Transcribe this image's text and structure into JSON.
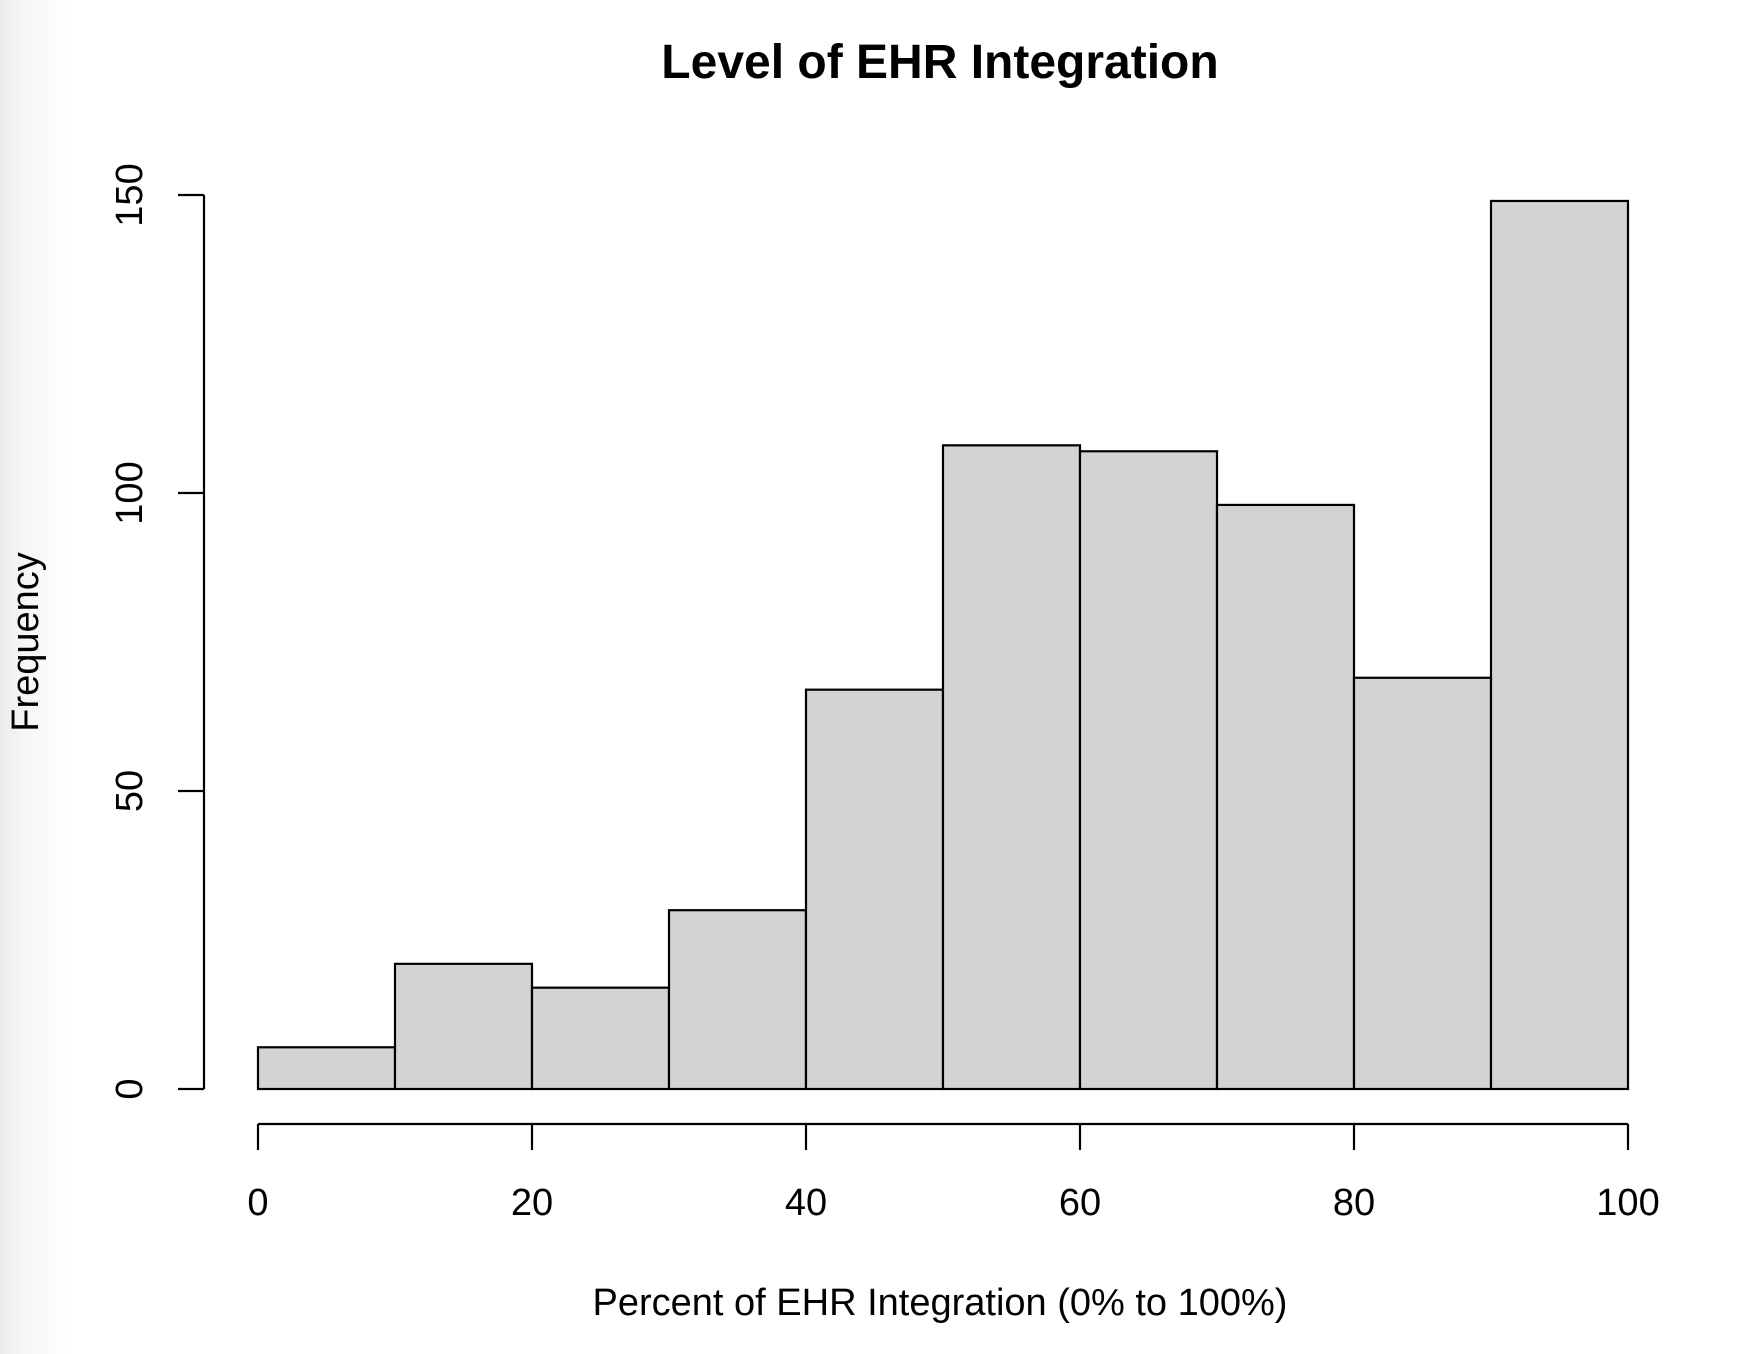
{
  "chart_data": {
    "type": "bar",
    "subtype": "histogram",
    "title": "Level of EHR Integration",
    "xlabel": "Percent of EHR Integration (0% to 100%)",
    "ylabel": "Frequency",
    "bins": [
      {
        "from": 0,
        "to": 10,
        "value": 7
      },
      {
        "from": 10,
        "to": 20,
        "value": 21
      },
      {
        "from": 20,
        "to": 30,
        "value": 17
      },
      {
        "from": 30,
        "to": 40,
        "value": 30
      },
      {
        "from": 40,
        "to": 50,
        "value": 67
      },
      {
        "from": 50,
        "to": 60,
        "value": 108
      },
      {
        "from": 60,
        "to": 70,
        "value": 107
      },
      {
        "from": 70,
        "to": 80,
        "value": 98
      },
      {
        "from": 80,
        "to": 90,
        "value": 69
      },
      {
        "from": 90,
        "to": 100,
        "value": 149
      }
    ],
    "xlim": [
      0,
      100
    ],
    "ylim": [
      0,
      150
    ],
    "x_ticks": [
      "0",
      "20",
      "40",
      "60",
      "80",
      "100"
    ],
    "y_ticks": [
      "0",
      "50",
      "100",
      "150"
    ],
    "grid": false,
    "legend": "none",
    "colors": {
      "bar_fill": "#d3d3d3",
      "bar_stroke": "#000000",
      "axis": "#000000",
      "background": "#ffffff"
    }
  }
}
